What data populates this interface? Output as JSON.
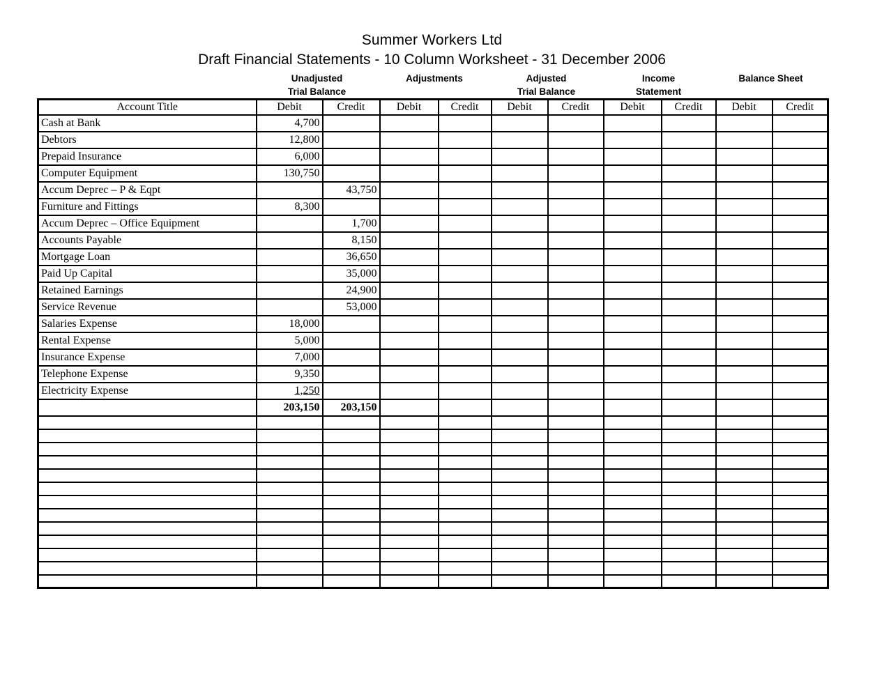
{
  "header": {
    "title": "Summer Workers Ltd",
    "subtitle": "Draft Financial Statements - 10 Column Worksheet - 31 December 2006"
  },
  "column_groups": [
    {
      "line1": "Unadjusted",
      "line2": "Trial Balance"
    },
    {
      "line1": "Adjustments",
      "line2": ""
    },
    {
      "line1": "Adjusted",
      "line2": "Trial Balance"
    },
    {
      "line1": "Income",
      "line2": "Statement"
    },
    {
      "line1": "Balance Sheet",
      "line2": ""
    }
  ],
  "table": {
    "header": {
      "account_title": "Account Title",
      "debit": "Debit",
      "credit": "Credit"
    },
    "rows": [
      {
        "account": "Cash at Bank",
        "debit": "4,700",
        "credit": ""
      },
      {
        "account": "Debtors",
        "debit": "12,800",
        "credit": ""
      },
      {
        "account": "Prepaid Insurance",
        "debit": "6,000",
        "credit": ""
      },
      {
        "account": "Computer Equipment",
        "debit": "130,750",
        "credit": ""
      },
      {
        "account": "Accum Deprec – P & Eqpt",
        "debit": "",
        "credit": "43,750"
      },
      {
        "account": "Furniture and Fittings",
        "debit": "8,300",
        "credit": ""
      },
      {
        "account": "Accum Deprec – Office Equipment",
        "debit": "",
        "credit": "1,700"
      },
      {
        "account": "Accounts Payable",
        "debit": "",
        "credit": "8,150"
      },
      {
        "account": "Mortgage Loan",
        "debit": "",
        "credit": "36,650"
      },
      {
        "account": "Paid Up Capital",
        "debit": "",
        "credit": "35,000"
      },
      {
        "account": "Retained Earnings",
        "debit": "",
        "credit": "24,900"
      },
      {
        "account": "Service Revenue",
        "debit": "",
        "credit": "53,000"
      },
      {
        "account": "Salaries Expense",
        "debit": "18,000",
        "credit": ""
      },
      {
        "account": "Rental Expense",
        "debit": "5,000",
        "credit": ""
      },
      {
        "account": "Insurance Expense",
        "debit": "7,000",
        "credit": ""
      },
      {
        "account": "Telephone Expense",
        "debit": "9,350",
        "credit": ""
      },
      {
        "account": "Electricity Expense",
        "debit": "1,250",
        "credit": "",
        "debit_underlined": true
      }
    ],
    "totals_row": {
      "debit": "203,150",
      "credit": "203,150"
    },
    "empty_row_count": 13
  },
  "colors": {
    "background": "#ffffff",
    "text": "#000000",
    "border": "#000000"
  }
}
